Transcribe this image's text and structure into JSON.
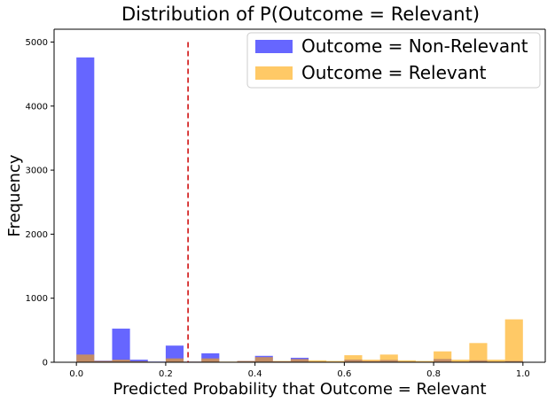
{
  "chart_data": {
    "type": "bar",
    "title": "Distribution of P(Outcome = Relevant)",
    "xlabel": "Predicted Probability that Outcome = Relevant",
    "ylabel": "Frequency",
    "xlim": [
      -0.05,
      1.05
    ],
    "ylim": [
      0,
      5200
    ],
    "x_ticks": [
      0.0,
      0.2,
      0.4,
      0.6,
      0.8,
      1.0
    ],
    "x_tick_labels": [
      "0.0",
      "0.2",
      "0.4",
      "0.6",
      "0.8",
      "1.0"
    ],
    "y_ticks": [
      0,
      1000,
      2000,
      3000,
      4000,
      5000
    ],
    "y_tick_labels": [
      "0",
      "1000",
      "2000",
      "3000",
      "4000",
      "5000"
    ],
    "bin_width": 0.04,
    "bin_starts": [
      0.0,
      0.04,
      0.08,
      0.12,
      0.16,
      0.2,
      0.24,
      0.28,
      0.32,
      0.36,
      0.4,
      0.44,
      0.48,
      0.52,
      0.56,
      0.6,
      0.64,
      0.68,
      0.72,
      0.76,
      0.8,
      0.84,
      0.88,
      0.92,
      0.96
    ],
    "series": [
      {
        "name": "Outcome = Non-Relevant",
        "color": "#0000ff",
        "opacity": 0.6,
        "values": [
          4760,
          25,
          525,
          40,
          10,
          260,
          10,
          140,
          5,
          20,
          100,
          15,
          70,
          10,
          5,
          40,
          20,
          35,
          10,
          5,
          50,
          10,
          30,
          10,
          20
        ]
      },
      {
        "name": "Outcome = Relevant",
        "color": "#ffa500",
        "opacity": 0.6,
        "values": [
          120,
          20,
          40,
          15,
          5,
          60,
          10,
          60,
          10,
          20,
          80,
          20,
          50,
          30,
          20,
          110,
          40,
          120,
          30,
          20,
          170,
          40,
          300,
          40,
          670
        ]
      }
    ],
    "threshold_line": {
      "x": 0.25,
      "y_top": 5000,
      "color": "#cc0000",
      "style": "dashed"
    },
    "legend": {
      "position": "top-right"
    }
  }
}
